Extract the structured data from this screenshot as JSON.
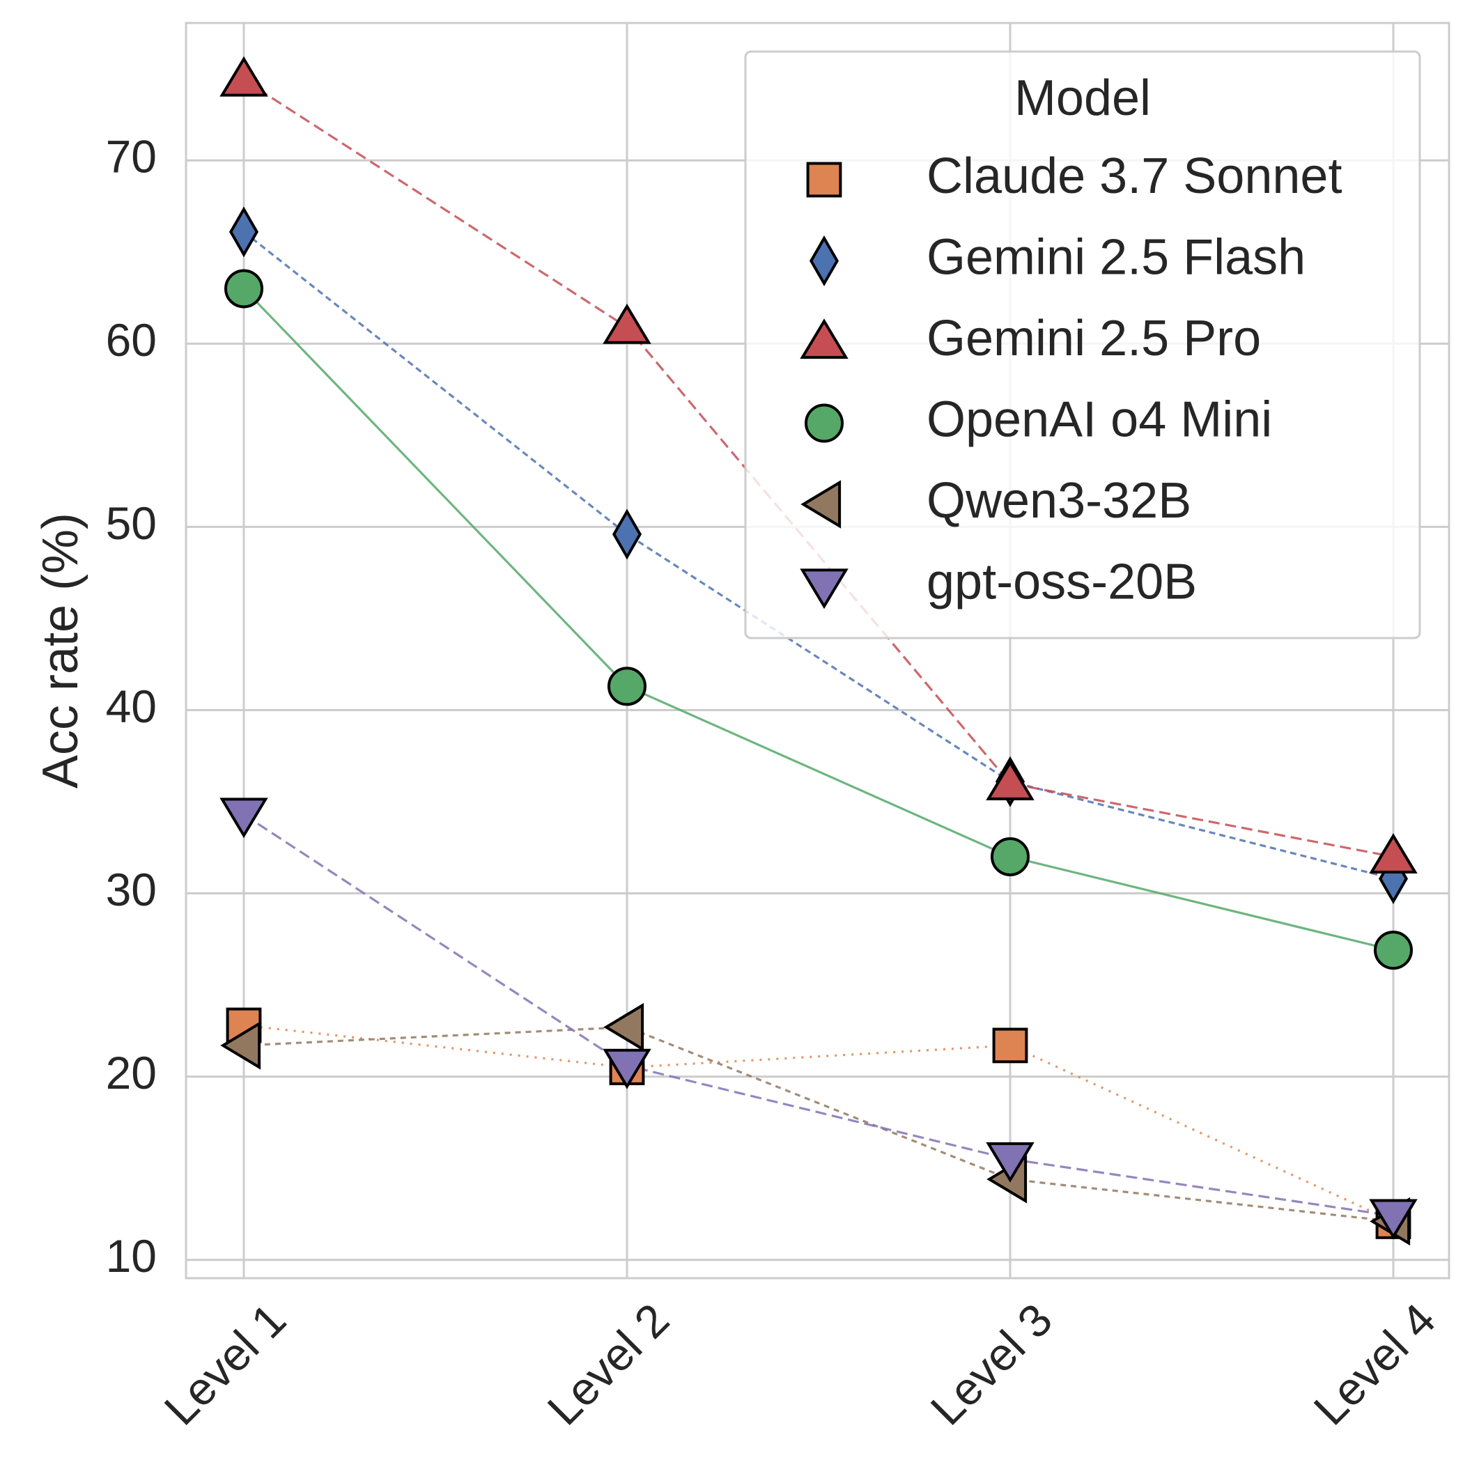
{
  "chart_data": {
    "type": "line",
    "title": "",
    "xlabel": "",
    "ylabel": "Acc rate (%)",
    "categories": [
      "Level 1",
      "Level 2",
      "Level 3",
      "Level 4"
    ],
    "yticks": [
      "10",
      "20",
      "30",
      "40",
      "50",
      "60",
      "70"
    ],
    "ylim": [
      9,
      77.5
    ],
    "grid": true,
    "legend": {
      "title": "Model",
      "placement": "top-right"
    },
    "series": [
      {
        "name": "Claude 3.7 Sonnet",
        "values": [
          22.8,
          20.5,
          21.7,
          12.1
        ],
        "color": "#dd8452",
        "marker": "square",
        "dash": "dotted"
      },
      {
        "name": "Gemini 2.5 Flash",
        "values": [
          66.1,
          49.6,
          36.1,
          30.8
        ],
        "color": "#4c72b0",
        "marker": "thin-diamond",
        "dash": "short-dash"
      },
      {
        "name": "Gemini 2.5 Pro",
        "values": [
          74.4,
          60.9,
          36.0,
          32.0
        ],
        "color": "#c44e52",
        "marker": "triangle-up",
        "dash": "dash"
      },
      {
        "name": "OpenAI o4 Mini",
        "values": [
          63.0,
          41.3,
          32.0,
          26.9
        ],
        "color": "#55a868",
        "marker": "circle",
        "dash": "solid"
      },
      {
        "name": "Qwen3-32B",
        "values": [
          21.7,
          22.7,
          14.4,
          12.1
        ],
        "color": "#937860",
        "marker": "triangle-left",
        "dash": "dense-dash"
      },
      {
        "name": "gpt-oss-20B",
        "values": [
          34.3,
          20.6,
          15.5,
          12.4
        ],
        "color": "#8172b3",
        "marker": "triangle-down",
        "dash": "dash"
      }
    ]
  }
}
